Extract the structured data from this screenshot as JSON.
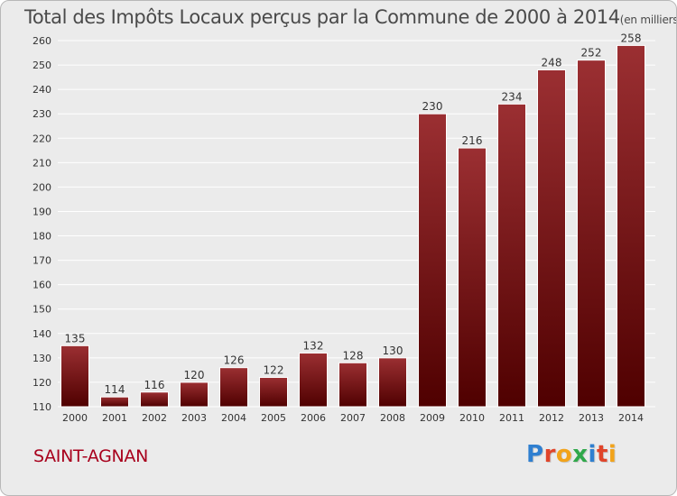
{
  "title": "Total des Impôts Locaux perçus par la Commune de 2000 à 2014",
  "unit_note": "(en milliers d'€)",
  "commune": "SAINT-AGNAN",
  "brand": {
    "name": "Proxiti",
    "letters": [
      {
        "char": "P",
        "color": "#2f7fd0"
      },
      {
        "char": "r",
        "color": "#e0442a"
      },
      {
        "char": "o",
        "color": "#f2a31a"
      },
      {
        "char": "x",
        "color": "#2fa84a"
      },
      {
        "char": "i",
        "color": "#2f7fd0"
      },
      {
        "char": "t",
        "color": "#e0442a"
      },
      {
        "char": "i",
        "color": "#f2a31a"
      }
    ]
  },
  "colors": {
    "bar_top": "#9b2f32",
    "bar_bottom": "#4f0000",
    "grid": "#ffffff",
    "axis_text": "#333333",
    "commune": "#a8001c"
  },
  "chart_data": {
    "type": "bar",
    "categories": [
      "2000",
      "2001",
      "2002",
      "2003",
      "2004",
      "2005",
      "2006",
      "2007",
      "2008",
      "2009",
      "2010",
      "2011",
      "2012",
      "2013",
      "2014"
    ],
    "values": [
      135,
      114,
      116,
      120,
      126,
      122,
      132,
      128,
      130,
      230,
      216,
      234,
      248,
      252,
      258
    ],
    "ylim": [
      110,
      260
    ],
    "yticks": [
      110,
      120,
      130,
      140,
      150,
      160,
      170,
      180,
      190,
      200,
      210,
      220,
      230,
      240,
      250,
      260
    ],
    "grid": true,
    "data_labels": true
  }
}
